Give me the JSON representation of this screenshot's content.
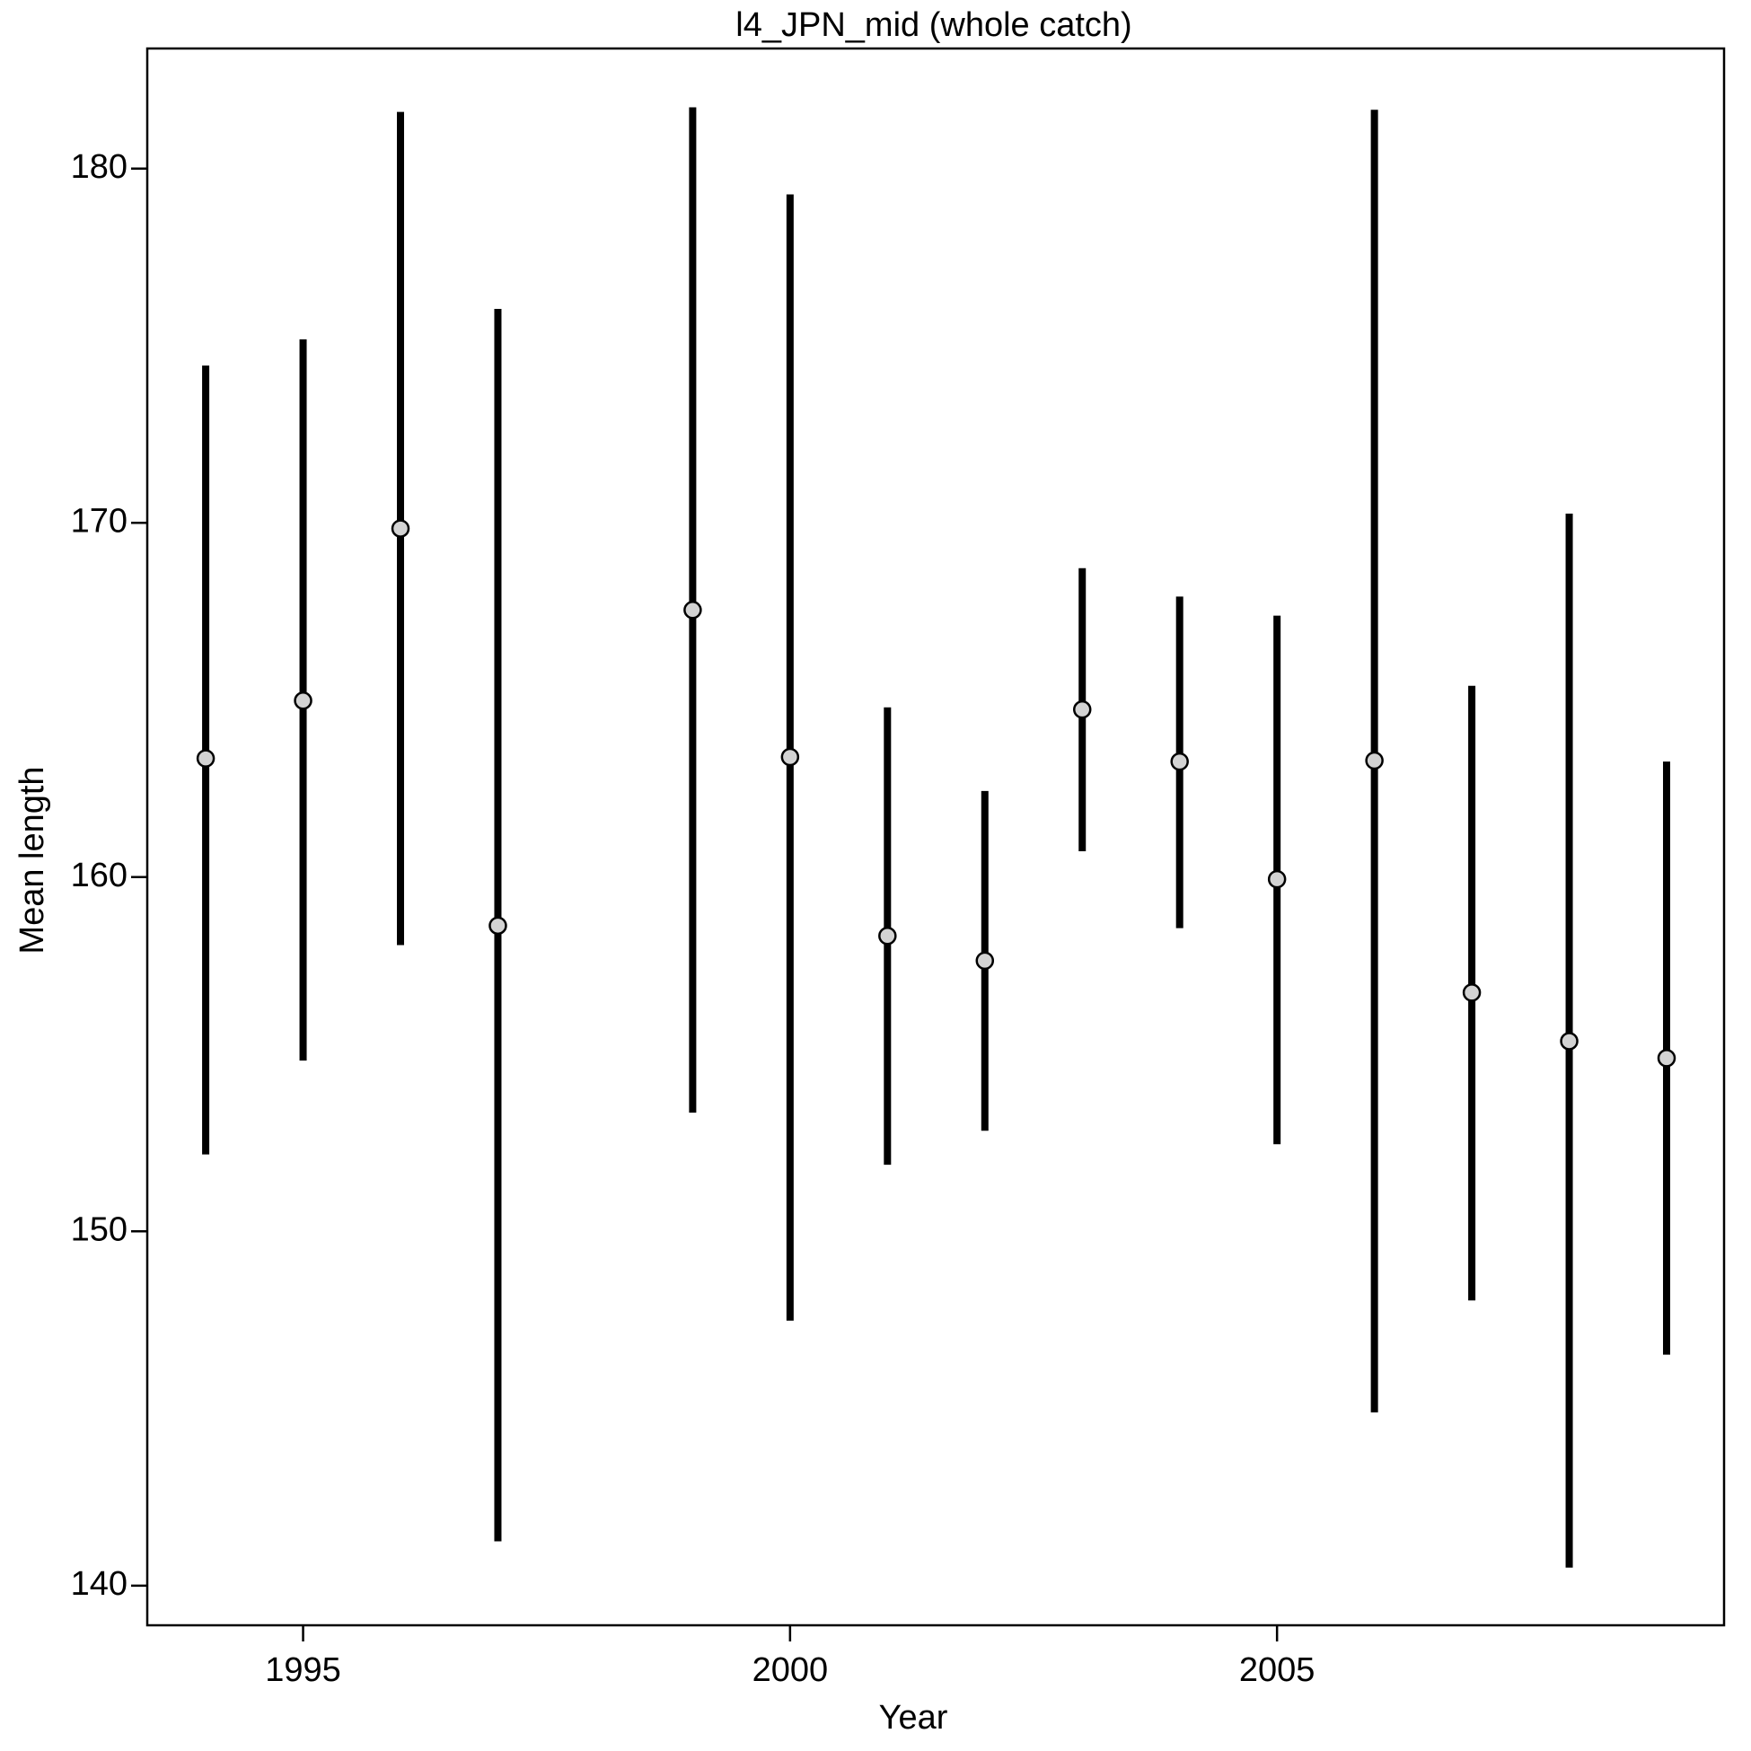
{
  "chart_data": {
    "type": "errorbar",
    "title": "l4_JPN_mid (whole catch)",
    "x_label": "Year",
    "y_label": "Mean length",
    "x": [
      1994,
      1995,
      1996,
      1997,
      1999,
      2000,
      2001,
      2002,
      2003,
      2004,
      2005,
      2006,
      2007,
      2008,
      2009
    ],
    "values": [
      163.35,
      164.98,
      169.84,
      158.63,
      167.54,
      163.39,
      158.34,
      157.64,
      164.73,
      163.26,
      159.94,
      163.29,
      156.74,
      155.37,
      154.89
    ],
    "lower": [
      152.17,
      154.82,
      158.08,
      141.25,
      153.35,
      147.48,
      151.88,
      152.84,
      160.73,
      158.56,
      152.46,
      144.89,
      148.05,
      140.51,
      146.52
    ],
    "upper": [
      174.44,
      175.18,
      181.6,
      176.04,
      181.73,
      179.27,
      164.79,
      162.43,
      168.72,
      167.92,
      167.38,
      181.66,
      165.4,
      170.26,
      163.26
    ],
    "color": "#000000",
    "point_color": "#d3d3d3",
    "xlim": [
      1993.4,
      2009.59
    ],
    "ylim": [
      138.88,
      183.39
    ],
    "xticks": [
      1995,
      2000,
      2005
    ],
    "yticks": [
      140,
      150,
      160,
      170,
      180
    ],
    "grid": false
  }
}
